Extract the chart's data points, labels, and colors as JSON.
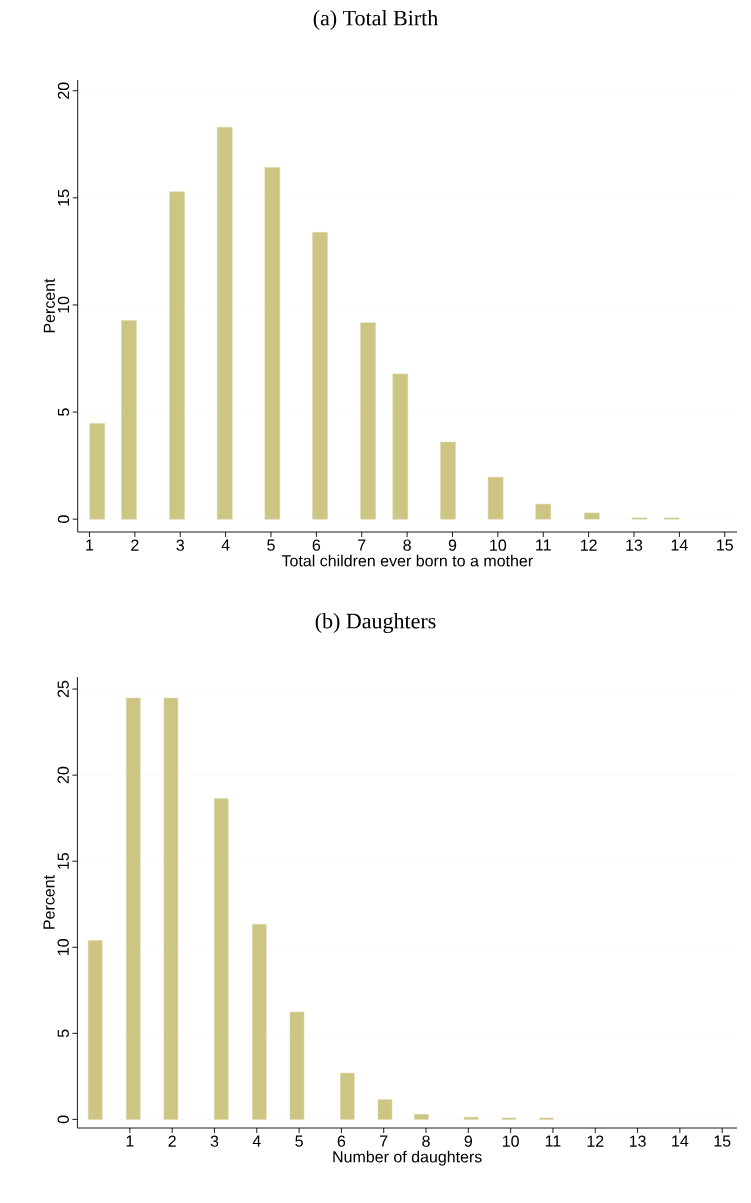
{
  "chart_data": [
    {
      "type": "bar",
      "title": "(a) Total Birth",
      "xlabel": "Total children ever born to a mother",
      "ylabel": "Percent",
      "color": "#cdc583",
      "grid": "y",
      "x": [
        1.17,
        1.87,
        2.93,
        3.98,
        5.03,
        6.08,
        7.14,
        7.85,
        8.9,
        9.95,
        11.0,
        12.07,
        13.12,
        13.83
      ],
      "values": [
        4.47,
        9.27,
        15.28,
        18.29,
        16.42,
        13.39,
        9.17,
        6.78,
        3.6,
        1.96,
        0.7,
        0.29,
        0.06,
        0.06
      ],
      "xlim": [
        0.74,
        15.27
      ],
      "ylim": [
        -0.6,
        20.5
      ],
      "xticks": [
        1,
        2,
        3,
        4,
        5,
        6,
        7,
        8,
        9,
        10,
        11,
        12,
        13,
        14,
        15
      ],
      "yticks": [
        0,
        5,
        10,
        15,
        20
      ]
    },
    {
      "type": "bar",
      "title": "(b) Daughters",
      "xlabel": "Number of daughters",
      "ylabel": "Percent",
      "color": "#cdc583",
      "grid": "y",
      "x": [
        0.18,
        1.08,
        1.97,
        3.16,
        4.06,
        4.95,
        6.14,
        7.03,
        7.89,
        9.07,
        9.96,
        10.85
      ],
      "values": [
        10.4,
        24.48,
        24.48,
        18.64,
        11.33,
        6.24,
        2.69,
        1.15,
        0.3,
        0.13,
        0.08,
        0.08
      ],
      "xlim": [
        -0.24,
        15.35
      ],
      "ylim": [
        -0.5,
        25.7
      ],
      "xticks": [
        1,
        2,
        3,
        4,
        5,
        6,
        7,
        8,
        9,
        10,
        11,
        12,
        13,
        14,
        15
      ],
      "yticks": [
        0,
        5,
        10,
        15,
        20,
        25
      ]
    }
  ]
}
